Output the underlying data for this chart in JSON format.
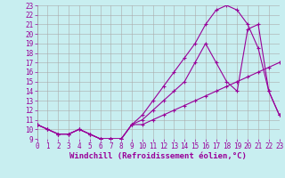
{
  "xlabel": "Windchill (Refroidissement éolien,°C)",
  "bg_color": "#c8eef0",
  "line_color": "#990099",
  "grid_color": "#aaaaaa",
  "xlim": [
    0,
    23
  ],
  "ylim": [
    9,
    23
  ],
  "xticks": [
    0,
    1,
    2,
    3,
    4,
    5,
    6,
    7,
    8,
    9,
    10,
    11,
    12,
    13,
    14,
    15,
    16,
    17,
    18,
    19,
    20,
    21,
    22,
    23
  ],
  "yticks": [
    9,
    10,
    11,
    12,
    13,
    14,
    15,
    16,
    17,
    18,
    19,
    20,
    21,
    22,
    23
  ],
  "line1_x": [
    0,
    1,
    2,
    3,
    4,
    5,
    6,
    7,
    8,
    9,
    10,
    11,
    12,
    13,
    14,
    15,
    16,
    17,
    18,
    19,
    20,
    21,
    22,
    23
  ],
  "line1_y": [
    10.5,
    10.0,
    9.5,
    9.5,
    10.0,
    9.5,
    9.0,
    9.0,
    9.0,
    10.5,
    10.5,
    11.0,
    11.5,
    12.0,
    12.5,
    13.0,
    13.5,
    14.0,
    14.5,
    15.0,
    15.5,
    16.0,
    16.5,
    17.0
  ],
  "line2_x": [
    0,
    1,
    2,
    3,
    4,
    5,
    6,
    7,
    8,
    9,
    10,
    11,
    12,
    13,
    14,
    15,
    16,
    17,
    18,
    19,
    20,
    21,
    22,
    23
  ],
  "line2_y": [
    10.5,
    10.0,
    9.5,
    9.5,
    10.0,
    9.5,
    9.0,
    9.0,
    9.0,
    10.5,
    11.0,
    12.0,
    13.0,
    14.0,
    15.0,
    17.0,
    19.0,
    17.0,
    15.0,
    14.0,
    20.5,
    21.0,
    14.0,
    11.5
  ],
  "line3_x": [
    0,
    1,
    2,
    3,
    4,
    5,
    6,
    7,
    8,
    9,
    10,
    11,
    12,
    13,
    14,
    15,
    16,
    17,
    18,
    19,
    20,
    21,
    22,
    23
  ],
  "line3_y": [
    10.5,
    10.0,
    9.5,
    9.5,
    10.0,
    9.5,
    9.0,
    9.0,
    9.0,
    10.5,
    11.5,
    13.0,
    14.5,
    16.0,
    17.5,
    19.0,
    21.0,
    22.5,
    23.0,
    22.5,
    21.0,
    18.5,
    14.0,
    11.5
  ],
  "xlabel_fontsize": 6.5,
  "tick_fontsize": 5.5,
  "marker_size": 2.5,
  "line_width": 0.8
}
